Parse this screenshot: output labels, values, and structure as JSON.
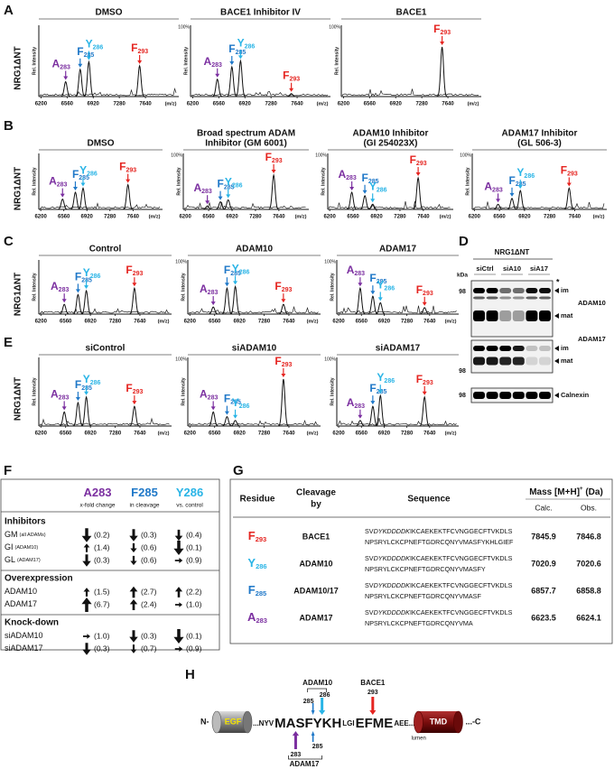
{
  "spectrum_axis": {
    "y_label": "Rel. Intensity",
    "top_label": "100%",
    "x_unit": "(m/z)",
    "xlim": [
      6170,
      8100
    ],
    "xticks": [
      6200,
      6560,
      6920,
      7280,
      7640
    ],
    "ylim": [
      0,
      1
    ]
  },
  "panels": [
    {
      "letter": "A",
      "row_label": "NRG1ΔNT",
      "spectra": [
        {
          "title": [
            "DMSO"
          ],
          "top_label": false,
          "peaks": [
            {
              "residue": "A",
              "position": "283",
              "color": "#7b2fa0",
              "mz": 6540,
              "intensity": 0.3
            },
            {
              "residue": "F",
              "position": "285",
              "color": "#1f78c8",
              "mz": 6740,
              "intensity": 0.55
            },
            {
              "residue": "Y",
              "position": "286",
              "color": "#29b4e6",
              "mz": 6860,
              "intensity": 0.7
            },
            {
              "residue": "F",
              "position": "293",
              "color": "#e52420",
              "mz": 7560,
              "intensity": 0.62
            }
          ]
        },
        {
          "title": [
            "BACE1 Inhibitor IV"
          ],
          "top_label": true,
          "peaks": [
            {
              "residue": "A",
              "position": "283",
              "color": "#7b2fa0",
              "mz": 6540,
              "intensity": 0.35
            },
            {
              "residue": "F",
              "position": "285",
              "color": "#1f78c8",
              "mz": 6740,
              "intensity": 0.6
            },
            {
              "residue": "Y",
              "position": "286",
              "color": "#29b4e6",
              "mz": 6860,
              "intensity": 0.72
            },
            {
              "residue": "F",
              "position": "293",
              "color": "#e52420",
              "mz": 7560,
              "intensity": 0.06
            }
          ]
        },
        {
          "title": [
            "BACE1"
          ],
          "top_label": true,
          "peaks": [
            {
              "residue": "F",
              "position": "293",
              "color": "#e52420",
              "mz": 7560,
              "intensity": 1.0
            }
          ]
        }
      ]
    },
    {
      "letter": "B",
      "row_label": "NRG1ΔNT",
      "spectra": [
        {
          "title": [
            "DMSO"
          ],
          "top_label": false,
          "peaks": [
            {
              "residue": "A",
              "position": "283",
              "color": "#7b2fa0",
              "mz": 6540,
              "intensity": 0.3
            },
            {
              "residue": "F",
              "position": "285",
              "color": "#1f78c8",
              "mz": 6740,
              "intensity": 0.5
            },
            {
              "residue": "Y",
              "position": "286",
              "color": "#29b4e6",
              "mz": 6860,
              "intensity": 0.62
            },
            {
              "residue": "F",
              "position": "293",
              "color": "#e52420",
              "mz": 7560,
              "intensity": 0.72
            }
          ]
        },
        {
          "title": [
            "Broad spectrum ADAM",
            "Inhibitor (GM 6001)"
          ],
          "top_label": true,
          "peaks": [
            {
              "residue": "A",
              "position": "283",
              "color": "#7b2fa0",
              "mz": 6540,
              "intensity": 0.1
            },
            {
              "residue": "F",
              "position": "285",
              "color": "#1f78c8",
              "mz": 6740,
              "intensity": 0.22
            },
            {
              "residue": "Y",
              "position": "286",
              "color": "#29b4e6",
              "mz": 6860,
              "intensity": 0.28
            },
            {
              "residue": "F",
              "position": "293",
              "color": "#e52420",
              "mz": 7560,
              "intensity": 1.0
            }
          ]
        },
        {
          "title": [
            "ADAM10 Inhibitor",
            "(GI 254023X)"
          ],
          "top_label": true,
          "peaks": [
            {
              "residue": "A",
              "position": "283",
              "color": "#7b2fa0",
              "mz": 6540,
              "intensity": 0.5
            },
            {
              "residue": "F",
              "position": "285",
              "color": "#1f78c8",
              "mz": 6740,
              "intensity": 0.4
            },
            {
              "residue": "Y",
              "position": "286",
              "color": "#29b4e6",
              "mz": 6860,
              "intensity": 0.15
            },
            {
              "residue": "F",
              "position": "293",
              "color": "#e52420",
              "mz": 7560,
              "intensity": 0.92
            }
          ]
        },
        {
          "title": [
            "ADAM17 Inhibitor",
            "(GL 506-3)"
          ],
          "top_label": true,
          "peaks": [
            {
              "residue": "A",
              "position": "283",
              "color": "#7b2fa0",
              "mz": 6540,
              "intensity": 0.15
            },
            {
              "residue": "F",
              "position": "285",
              "color": "#1f78c8",
              "mz": 6740,
              "intensity": 0.32
            },
            {
              "residue": "Y",
              "position": "286",
              "color": "#29b4e6",
              "mz": 6860,
              "intensity": 0.55
            },
            {
              "residue": "F",
              "position": "293",
              "color": "#e52420",
              "mz": 7560,
              "intensity": 0.62
            }
          ]
        }
      ]
    },
    {
      "letter": "C",
      "row_label": "NRG1ΔNT",
      "spectra": [
        {
          "title": [
            "Control"
          ],
          "top_label": false,
          "peaks": [
            {
              "residue": "A",
              "position": "283",
              "color": "#7b2fa0",
              "mz": 6540,
              "intensity": 0.3
            },
            {
              "residue": "F",
              "position": "285",
              "color": "#1f78c8",
              "mz": 6740,
              "intensity": 0.6
            },
            {
              "residue": "Y",
              "position": "286",
              "color": "#29b4e6",
              "mz": 6860,
              "intensity": 0.72
            },
            {
              "residue": "F",
              "position": "293",
              "color": "#e52420",
              "mz": 7560,
              "intensity": 0.8
            }
          ]
        },
        {
          "title": [
            "ADAM10"
          ],
          "top_label": true,
          "peaks": [
            {
              "residue": "A",
              "position": "283",
              "color": "#7b2fa0",
              "mz": 6540,
              "intensity": 0.22
            },
            {
              "residue": "F",
              "position": "285",
              "color": "#1f78c8",
              "mz": 6740,
              "intensity": 0.8
            },
            {
              "residue": "Y",
              "position": "286",
              "color": "#29b4e6",
              "mz": 6860,
              "intensity": 0.85
            },
            {
              "residue": "F",
              "position": "293",
              "color": "#e52420",
              "mz": 7560,
              "intensity": 0.3
            }
          ]
        },
        {
          "title": [
            "ADAM17"
          ],
          "top_label": true,
          "peaks": [
            {
              "residue": "A",
              "position": "283",
              "color": "#7b2fa0",
              "mz": 6540,
              "intensity": 0.8
            },
            {
              "residue": "F",
              "position": "285",
              "color": "#1f78c8",
              "mz": 6740,
              "intensity": 0.55
            },
            {
              "residue": "Y",
              "position": "286",
              "color": "#29b4e6",
              "mz": 6860,
              "intensity": 0.35
            },
            {
              "residue": "F",
              "position": "293",
              "color": "#e52420",
              "mz": 7560,
              "intensity": 0.2
            }
          ]
        }
      ]
    },
    {
      "letter": "E",
      "row_label": "NRG1ΔNT",
      "spectra": [
        {
          "title": [
            "siControl"
          ],
          "top_label": false,
          "peaks": [
            {
              "residue": "A",
              "position": "283",
              "color": "#7b2fa0",
              "mz": 6540,
              "intensity": 0.3
            },
            {
              "residue": "F",
              "position": "285",
              "color": "#1f78c8",
              "mz": 6740,
              "intensity": 0.5
            },
            {
              "residue": "Y",
              "position": "286",
              "color": "#29b4e6",
              "mz": 6860,
              "intensity": 0.62
            },
            {
              "residue": "F",
              "position": "293",
              "color": "#e52420",
              "mz": 7560,
              "intensity": 0.42
            }
          ]
        },
        {
          "title": [
            "siADAM10"
          ],
          "top_label": true,
          "peaks": [
            {
              "residue": "A",
              "position": "283",
              "color": "#7b2fa0",
              "mz": 6540,
              "intensity": 0.3
            },
            {
              "residue": "F",
              "position": "285",
              "color": "#1f78c8",
              "mz": 6740,
              "intensity": 0.2
            },
            {
              "residue": "Y",
              "position": "286",
              "color": "#29b4e6",
              "mz": 6860,
              "intensity": 0.12
            },
            {
              "residue": "F",
              "position": "293",
              "color": "#e52420",
              "mz": 7560,
              "intensity": 1.0
            }
          ]
        },
        {
          "title": [
            "siADAM17"
          ],
          "top_label": true,
          "peaks": [
            {
              "residue": "A",
              "position": "283",
              "color": "#7b2fa0",
              "mz": 6540,
              "intensity": 0.12
            },
            {
              "residue": "F",
              "position": "285",
              "color": "#1f78c8",
              "mz": 6740,
              "intensity": 0.42
            },
            {
              "residue": "Y",
              "position": "286",
              "color": "#29b4e6",
              "mz": 6860,
              "intensity": 0.65
            },
            {
              "residue": "F",
              "position": "293",
              "color": "#e52420",
              "mz": 7560,
              "intensity": 0.62
            }
          ]
        }
      ]
    }
  ],
  "blot": {
    "letter": "D",
    "header": "NRG1ΔNT",
    "kda": "kDa",
    "lanes": [
      "siCtrl",
      "siA10",
      "siA17"
    ],
    "adam10": {
      "marker": "98",
      "star": "*",
      "im": "im",
      "mat": "mat",
      "name": "ADAM10"
    },
    "adam17": {
      "marker": "98",
      "im": "im",
      "mat": "mat",
      "name": "ADAM17"
    },
    "calnexin": {
      "marker": "98",
      "name": "Calnexin"
    }
  },
  "fold_change": {
    "letter": "F",
    "columns": [
      {
        "residue": "A",
        "position": "283",
        "color": "#7b2fa0"
      },
      {
        "residue": "F",
        "position": "285",
        "color": "#1f78c8"
      },
      {
        "residue": "Y",
        "position": "286",
        "color": "#29b4e6"
      }
    ],
    "subheader": [
      "x-fold change",
      "in cleavage",
      "vs. control"
    ],
    "sections": [
      {
        "name": "Inhibitors",
        "rows": [
          {
            "name": "GM",
            "note": "(all ADAMs)",
            "cells": [
              {
                "value": 0.2,
                "label": "(0.2)"
              },
              {
                "value": 0.3,
                "label": "(0.3)"
              },
              {
                "value": 0.4,
                "label": "(0.4)"
              }
            ]
          },
          {
            "name": "GI",
            "note": "(ADAM10)",
            "cells": [
              {
                "value": 1.4,
                "label": "(1.4)"
              },
              {
                "value": 0.6,
                "label": "(0.6)"
              },
              {
                "value": 0.1,
                "label": "(0.1)"
              }
            ]
          },
          {
            "name": "GL",
            "note": "(ADAM17)",
            "cells": [
              {
                "value": 0.3,
                "label": "(0.3)"
              },
              {
                "value": 0.6,
                "label": "(0.6)"
              },
              {
                "value": 0.9,
                "label": "(0.9)"
              }
            ]
          }
        ]
      },
      {
        "name": "Overexpression",
        "rows": [
          {
            "name": "ADAM10",
            "cells": [
              {
                "value": 1.5,
                "label": "(1.5)"
              },
              {
                "value": 2.7,
                "label": "(2.7)"
              },
              {
                "value": 2.2,
                "label": "(2.2)"
              }
            ]
          },
          {
            "name": "ADAM17",
            "cells": [
              {
                "value": 6.7,
                "label": "(6.7)"
              },
              {
                "value": 2.4,
                "label": "(2.4)"
              },
              {
                "value": 1.0,
                "label": "(1.0)"
              }
            ]
          }
        ]
      },
      {
        "name": "Knock-down",
        "rows": [
          {
            "name": "siADAM10",
            "cells": [
              {
                "value": 1.0,
                "label": "(1.0)"
              },
              {
                "value": 0.3,
                "label": "(0.3)"
              },
              {
                "value": 0.1,
                "label": "(0.1)"
              }
            ]
          },
          {
            "name": "siADAM17",
            "cells": [
              {
                "value": 0.3,
                "label": "(0.3)"
              },
              {
                "value": 0.7,
                "label": "(0.7)"
              },
              {
                "value": 0.9,
                "label": "(0.9)"
              }
            ]
          }
        ]
      }
    ]
  },
  "cleavage_table": {
    "letter": "G",
    "headers": {
      "residue": "Residue",
      "cleavage": [
        "Cleavage",
        "by"
      ],
      "sequence": "Sequence",
      "mass": "Mass [M+H]",
      "mass_sup": "+",
      "mass_unit": " (Da)",
      "calc": "Calc.",
      "obs": "Obs."
    },
    "rows": [
      {
        "residue": "F",
        "position": "293",
        "color": "#e52420",
        "enzyme": "BACE1",
        "seq_line1": [
          "SV",
          "DYKDDDDK",
          "IKCAEKEKTFCVNGGECFTVKDLS"
        ],
        "seq_line2": "NPSRYLCKCPNEFTGDRCQNYVMASFYKHLGIEF",
        "calc": 7845.9,
        "obs": 7846.8
      },
      {
        "residue": "Y",
        "position": "286",
        "color": "#29b4e6",
        "enzyme": "ADAM10",
        "seq_line1": [
          "SV",
          "DYKDDDDK",
          "IKCAEKEKTFCVNGGECFTVKDLS"
        ],
        "seq_line2": "NPSRYLCKCPNEFTGDRCQNYVMASFY",
        "calc": 7020.9,
        "obs": 7020.6
      },
      {
        "residue": "F",
        "position": "285",
        "color": "#1f78c8",
        "enzyme": "ADAM10/17",
        "seq_line1": [
          "SV",
          "DYKDDDDK",
          "IKCAEKEKTFCVNGGECFTVKDLS"
        ],
        "seq_line2": "NPSRYLCKCPNEFTGDRCQNYVMASF",
        "calc": 6857.7,
        "obs": 6858.8
      },
      {
        "residue": "A",
        "position": "283",
        "color": "#7b2fa0",
        "enzyme": "ADAM17",
        "seq_line1": [
          "SV",
          "DYKDDDDK",
          "IKCAEKEKTFCVNGGECFTVKDLS"
        ],
        "seq_line2": "NPSRYLCKCPNEFTGDRCQNYVMA",
        "calc": 6623.5,
        "obs": 6624.1
      }
    ]
  },
  "topology": {
    "letter": "H",
    "n_term": "N-",
    "egf": "EGF",
    "sequence": [
      "...NYV",
      "MASFYKH",
      "LGI",
      "EFME",
      "AEE..."
    ],
    "tmd": "TMD",
    "c_term": "...-C",
    "lumen": "lumen",
    "above": {
      "adam10": "ADAM10",
      "p286": "286",
      "p285": "285",
      "bace1": "BACE1",
      "p293": "293"
    },
    "below": {
      "p285": "285",
      "p283": "283",
      "adam17": "ADAM17"
    }
  }
}
